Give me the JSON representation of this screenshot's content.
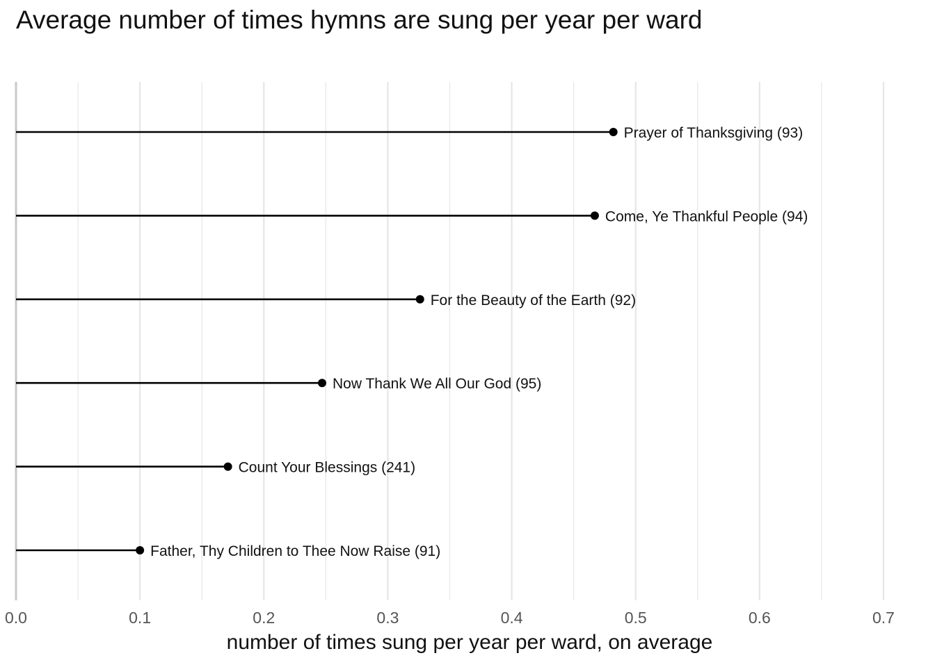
{
  "chart_data": {
    "type": "lollipop",
    "title": "Average number of times hymns are sung per year per ward",
    "xlabel": "number of times sung per year per ward, on average",
    "ylabel": "",
    "xlim": [
      0,
      0.7
    ],
    "x_ticks": [
      "0.0",
      "0.1",
      "0.2",
      "0.3",
      "0.4",
      "0.5",
      "0.6",
      "0.7"
    ],
    "x_tick_values": [
      0,
      0.1,
      0.2,
      0.3,
      0.4,
      0.5,
      0.6,
      0.7
    ],
    "grid": true,
    "points": [
      {
        "label": "Prayer of Thanksgiving (93)",
        "value": 0.482
      },
      {
        "label": "Come, Ye Thankful People (94)",
        "value": 0.467
      },
      {
        "label": "For the Beauty of the Earth (92)",
        "value": 0.326
      },
      {
        "label": "Now Thank We All Our God (95)",
        "value": 0.247
      },
      {
        "label": "Count Your Blessings (241)",
        "value": 0.171
      },
      {
        "label": "Father, Thy Children to Thee Now Raise (91)",
        "value": 0.1
      }
    ],
    "colors": {
      "mark": "#000000",
      "grid": "#e6e6e6",
      "axis": "#c8c8c8",
      "tick_text": "#555555"
    }
  }
}
